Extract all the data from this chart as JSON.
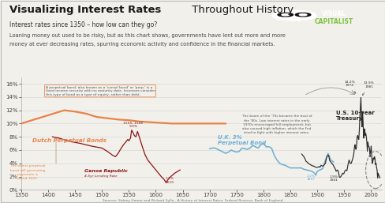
{
  "title_bold": "Visualizing Interest Rates",
  "title_regular": " Throughout History",
  "subtitle": "Interest rates since 1350 – how low can they go?",
  "body_text1": "Loaning money out used to be risky, but as this chart shows, governments have lent out more and more",
  "body_text2": "money at ever decreasing rates, spurring economic activity and confidence in the financial markets.",
  "background_color": "#f2f0eb",
  "plot_bg_color": "#f2f0eb",
  "xlim": [
    1350,
    2020
  ],
  "ylim": [
    0.0,
    0.17
  ],
  "yticks": [
    0.0,
    0.02,
    0.04,
    0.06,
    0.08,
    0.1,
    0.12,
    0.14,
    0.16
  ],
  "ytick_labels": [
    "0%",
    "2%",
    "4%",
    "6%",
    "8%",
    "10%",
    "12%",
    "14%",
    "16%"
  ],
  "xticks": [
    1350,
    1400,
    1450,
    1500,
    1550,
    1600,
    1650,
    1700,
    1750,
    1800,
    1850,
    1900,
    1950,
    2000
  ],
  "dutch_color": "#e8834a",
  "genoa_color": "#8b1515",
  "uk_color": "#6baed6",
  "us_color": "#2c2c2c",
  "source_text": "Sources: Sidney Homer and Richard Sylla - A History of Interest Rates, Federal Reserve, Bank of England",
  "dutch_x": [
    1350,
    1370,
    1390,
    1410,
    1430,
    1450,
    1470,
    1490,
    1510,
    1530,
    1550,
    1570,
    1590,
    1610,
    1630,
    1650,
    1670,
    1690,
    1710,
    1730
  ],
  "dutch_y": [
    0.1,
    0.105,
    0.11,
    0.115,
    0.12,
    0.118,
    0.115,
    0.11,
    0.108,
    0.106,
    0.105,
    0.103,
    0.102,
    0.101,
    0.1,
    0.1,
    0.1,
    0.1,
    0.1,
    0.1
  ],
  "genoa_x": [
    1408,
    1420,
    1440,
    1460,
    1480,
    1500,
    1510,
    1520,
    1525,
    1530,
    1535,
    1540,
    1545,
    1548,
    1550,
    1553,
    1555,
    1558,
    1560,
    1563,
    1566,
    1568,
    1570,
    1575,
    1580,
    1585,
    1590,
    1595,
    1600,
    1605,
    1610,
    1615,
    1619,
    1625,
    1635,
    1645
  ],
  "genoa_y": [
    0.08,
    0.078,
    0.073,
    0.07,
    0.066,
    0.063,
    0.058,
    0.052,
    0.05,
    0.055,
    0.062,
    0.068,
    0.073,
    0.076,
    0.074,
    0.078,
    0.09,
    0.086,
    0.082,
    0.08,
    0.088,
    0.083,
    0.078,
    0.065,
    0.053,
    0.045,
    0.04,
    0.035,
    0.03,
    0.025,
    0.02,
    0.016,
    0.011,
    0.018,
    0.025,
    0.03
  ],
  "uk_x": [
    1700,
    1705,
    1710,
    1715,
    1720,
    1725,
    1730,
    1735,
    1740,
    1745,
    1750,
    1755,
    1760,
    1765,
    1770,
    1775,
    1780,
    1785,
    1790,
    1795,
    1800,
    1805,
    1810,
    1815,
    1820,
    1825,
    1830,
    1835,
    1840,
    1845,
    1850,
    1855,
    1860,
    1865,
    1870,
    1875,
    1880,
    1885,
    1890,
    1895,
    1897,
    1900,
    1905,
    1910,
    1915,
    1920,
    1925,
    1930
  ],
  "uk_y": [
    0.062,
    0.063,
    0.063,
    0.061,
    0.059,
    0.057,
    0.055,
    0.057,
    0.06,
    0.058,
    0.057,
    0.058,
    0.063,
    0.062,
    0.061,
    0.063,
    0.067,
    0.065,
    0.063,
    0.068,
    0.07,
    0.065,
    0.065,
    0.063,
    0.052,
    0.045,
    0.04,
    0.038,
    0.037,
    0.035,
    0.033,
    0.033,
    0.033,
    0.033,
    0.033,
    0.031,
    0.03,
    0.029,
    0.028,
    0.025,
    0.022,
    0.028,
    0.03,
    0.032,
    0.045,
    0.055,
    0.045,
    0.042
  ],
  "us_x": [
    1871,
    1873,
    1875,
    1877,
    1879,
    1881,
    1883,
    1885,
    1887,
    1889,
    1891,
    1893,
    1895,
    1897,
    1899,
    1901,
    1903,
    1905,
    1907,
    1909,
    1911,
    1913,
    1915,
    1917,
    1919,
    1921,
    1923,
    1925,
    1927,
    1929,
    1931,
    1933,
    1935,
    1937,
    1939,
    1941,
    1943,
    1945,
    1947,
    1949,
    1951,
    1953,
    1955,
    1957,
    1959,
    1961,
    1963,
    1965,
    1966,
    1967,
    1968,
    1969,
    1970,
    1971,
    1972,
    1973,
    1974,
    1975,
    1976,
    1977,
    1978,
    1979,
    1980,
    1981,
    1982,
    1983,
    1984,
    1985,
    1986,
    1987,
    1988,
    1989,
    1990,
    1991,
    1992,
    1993,
    1994,
    1995,
    1996,
    1997,
    1998,
    1999,
    2000,
    2001,
    2002,
    2003,
    2004,
    2005,
    2006,
    2007,
    2008,
    2009,
    2010,
    2011,
    2012,
    2013,
    2014,
    2015,
    2016
  ],
  "us_y": [
    0.054,
    0.052,
    0.05,
    0.047,
    0.043,
    0.042,
    0.04,
    0.039,
    0.038,
    0.037,
    0.036,
    0.036,
    0.035,
    0.034,
    0.034,
    0.034,
    0.035,
    0.034,
    0.037,
    0.036,
    0.036,
    0.038,
    0.04,
    0.048,
    0.052,
    0.052,
    0.044,
    0.042,
    0.04,
    0.038,
    0.035,
    0.032,
    0.028,
    0.03,
    0.028,
    0.019,
    0.019,
    0.022,
    0.025,
    0.024,
    0.028,
    0.03,
    0.029,
    0.038,
    0.045,
    0.04,
    0.04,
    0.045,
    0.048,
    0.051,
    0.056,
    0.065,
    0.068,
    0.062,
    0.061,
    0.068,
    0.08,
    0.082,
    0.078,
    0.076,
    0.09,
    0.11,
    0.125,
    0.139,
    0.108,
    0.095,
    0.118,
    0.102,
    0.078,
    0.09,
    0.092,
    0.082,
    0.085,
    0.08,
    0.072,
    0.058,
    0.072,
    0.066,
    0.065,
    0.062,
    0.05,
    0.058,
    0.066,
    0.052,
    0.04,
    0.042,
    0.048,
    0.046,
    0.05,
    0.048,
    0.038,
    0.04,
    0.034,
    0.03,
    0.018,
    0.025,
    0.022,
    0.021,
    0.018
  ]
}
